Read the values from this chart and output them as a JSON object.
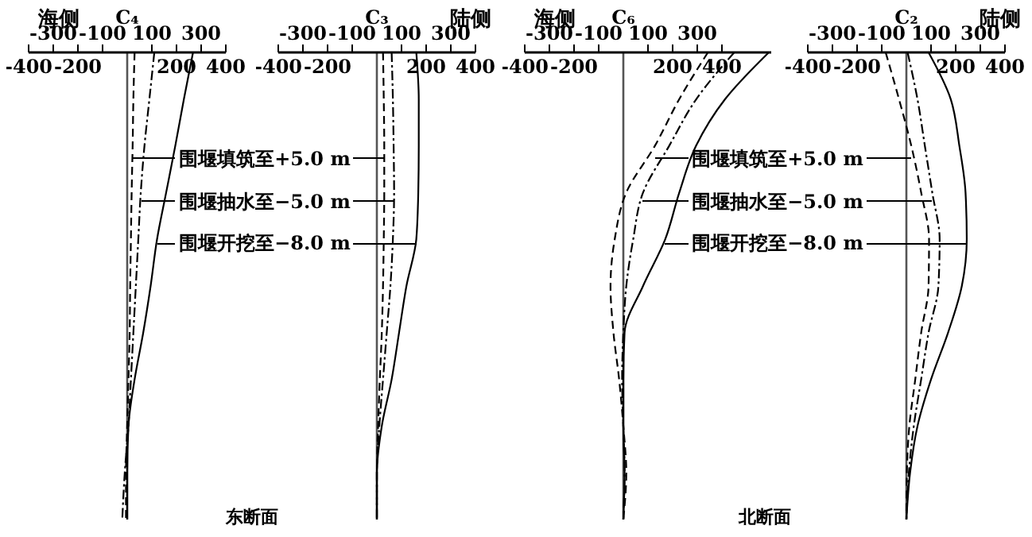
{
  "chart_data": [
    {
      "type": "line",
      "title": "C₄",
      "orientation": "horizontal",
      "categories": [
        null,
        null,
        null,
        null,
        null,
        null,
        null,
        null,
        null,
        null,
        null
      ],
      "xlim": [
        -400,
        400
      ],
      "xticks": [
        -400,
        -200,
        200,
        400
      ],
      "x2lim": [
        -400,
        400
      ],
      "x2ticks": [
        -300,
        -100,
        100,
        300
      ],
      "ref_lines": [
        {
          "axis": "x",
          "value": 0,
          "color": "#555555"
        }
      ],
      "legend": "right",
      "annotations": [
        "海侧",
        "东断面"
      ],
      "series": [
        {
          "name": "围堰开挖至−8.0 m",
          "color": "#000000",
          "line_style": "solid",
          "values": [
            267,
            230,
            195,
            158,
            121,
            95,
            65,
            30,
            5,
            0,
            0
          ]
        },
        {
          "name": "围堰抽水至−5.0 m",
          "color": "#000000",
          "line_style": "dotted",
          "values": [
            110,
            90,
            70,
            55,
            45,
            35,
            25,
            15,
            5,
            -10,
            -20
          ]
        },
        {
          "name": "围堰填筑至+5.0 m",
          "color": "#000000",
          "line_style": "dashed",
          "values": [
            30,
            25,
            22,
            18,
            15,
            12,
            10,
            5,
            0,
            -5,
            -5
          ]
        }
      ]
    },
    {
      "type": "line",
      "title": "C₃",
      "orientation": "horizontal",
      "categories": [
        null,
        null,
        null,
        null,
        null,
        null,
        null,
        null,
        null,
        null,
        null
      ],
      "xlim": [
        -400,
        400
      ],
      "xticks": [
        -400,
        -200,
        200,
        400
      ],
      "x2lim": [
        -400,
        400
      ],
      "x2ticks": [
        -300,
        -100,
        100,
        300
      ],
      "ref_lines": [
        {
          "axis": "x",
          "value": 0,
          "color": "#555555"
        }
      ],
      "annotations": [
        "陆侧"
      ],
      "series": [
        {
          "color": "#000000",
          "line_style": "solid",
          "values": [
            160,
            170,
            170,
            168,
            160,
            120,
            90,
            60,
            20,
            0,
            0
          ]
        },
        {
          "color": "#000000",
          "line_style": "dotted",
          "values": [
            60,
            65,
            68,
            70,
            65,
            55,
            40,
            25,
            10,
            0,
            0
          ]
        },
        {
          "color": "#000000",
          "line_style": "dashed",
          "values": [
            25,
            28,
            30,
            30,
            28,
            25,
            20,
            12,
            5,
            0,
            0
          ]
        }
      ]
    },
    {
      "type": "line",
      "title": "C₆",
      "orientation": "horizontal",
      "categories": [
        null,
        null,
        null,
        null,
        null,
        null,
        null,
        null,
        null,
        null,
        null
      ],
      "xlim": [
        -400,
        600
      ],
      "xticks": [
        -400,
        -200,
        200,
        400
      ],
      "x2lim": [
        -400,
        600
      ],
      "x2ticks": [
        -300,
        -100,
        100,
        300
      ],
      "legend": "right",
      "ref_lines": [
        {
          "axis": "x",
          "value": 0,
          "color": "#555555"
        }
      ],
      "annotations": [
        "海侧",
        "北断面"
      ],
      "series": [
        {
          "name": "围堰开挖至−8.0 m",
          "color": "#000000",
          "line_style": "solid",
          "values": [
            590,
            413,
            295,
            227,
            170,
            80,
            5,
            0,
            0,
            5,
            0
          ]
        },
        {
          "name": "围堰抽水至−5.0 m",
          "color": "#000000",
          "line_style": "dotted",
          "values": [
            450,
            296,
            186,
            80,
            40,
            12,
            0,
            -5,
            0,
            5,
            0
          ]
        },
        {
          "name": "围堰填筑至+5.0 m",
          "color": "#000000",
          "line_style": "dashed",
          "values": [
            343,
            227,
            128,
            12,
            -35,
            -52,
            -40,
            -17,
            0,
            12,
            0
          ]
        }
      ]
    },
    {
      "type": "line",
      "title": "C₂",
      "orientation": "horizontal",
      "categories": [
        null,
        null,
        null,
        null,
        null,
        null,
        null,
        null,
        null,
        null,
        null
      ],
      "xlim": [
        -400,
        400
      ],
      "xticks": [
        -400,
        -200,
        200,
        400
      ],
      "x2lim": [
        -400,
        400
      ],
      "x2ticks": [
        -300,
        -100,
        100,
        300
      ],
      "ref_lines": [
        {
          "axis": "x",
          "value": 0,
          "color": "#555555"
        }
      ],
      "annotations": [
        "陆侧"
      ],
      "series": [
        {
          "color": "#000000",
          "line_style": "solid",
          "values": [
            90,
            180,
            215,
            240,
            245,
            225,
            169,
            100,
            45,
            15,
            0
          ]
        },
        {
          "color": "#000000",
          "line_style": "dotted",
          "values": [
            5,
            45,
            75,
            105,
            135,
            130,
            90,
            60,
            30,
            10,
            0
          ]
        },
        {
          "color": "#000000",
          "line_style": "dashed",
          "values": [
            -84,
            -30,
            20,
            60,
            92,
            90,
            60,
            36,
            12,
            2,
            0
          ]
        }
      ]
    }
  ]
}
